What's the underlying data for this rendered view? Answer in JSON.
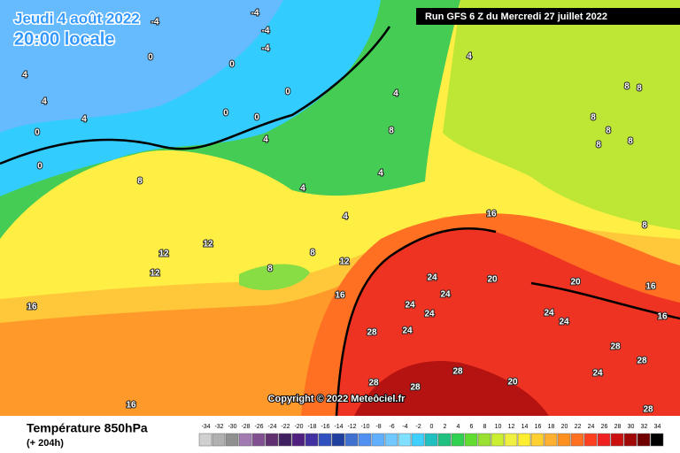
{
  "header": {
    "date": "Jeudi 4 août 2022",
    "time": "20:00 locale",
    "run": "Run GFS 6 Z du Mercredi 27 juillet 2022"
  },
  "copyright": "Copyright © 2022 Meteôciel.fr",
  "footer": {
    "title": "Température 850hPa",
    "lead": "(+ 204h)"
  },
  "contour_labels": [
    -4,
    -4,
    -4,
    -4,
    0,
    0,
    4,
    4,
    0,
    0,
    0,
    0,
    4,
    0,
    4,
    4,
    8,
    4,
    8,
    4,
    4,
    12,
    12,
    12,
    8,
    8,
    12,
    16,
    16,
    16,
    16,
    24,
    20,
    20,
    16,
    16,
    24,
    24,
    24,
    28,
    24,
    24,
    28,
    28,
    28,
    28,
    28,
    20,
    24,
    28,
    8,
    8,
    8,
    8,
    8,
    8,
    8,
    4,
    24
  ],
  "legend": {
    "values": [
      -34,
      -32,
      -30,
      -28,
      -26,
      -24,
      -22,
      -20,
      -18,
      -16,
      -14,
      -12,
      -10,
      -8,
      -6,
      -4,
      -2,
      0,
      2,
      4,
      6,
      8,
      10,
      12,
      14,
      16,
      18,
      20,
      22,
      24,
      26,
      28,
      30,
      32,
      34
    ],
    "colors": [
      "#d0d0d0",
      "#b0b0b0",
      "#909090",
      "#a07ab0",
      "#805090",
      "#603070",
      "#402060",
      "#502080",
      "#4030a0",
      "#3050c0",
      "#2040a0",
      "#4070d0",
      "#5090f0",
      "#60b0ff",
      "#70c8ff",
      "#80e0ff",
      "#40d0ff",
      "#20c0c0",
      "#20c080",
      "#30d050",
      "#60dd30",
      "#99e030",
      "#ccee30",
      "#f0f040",
      "#ffee30",
      "#ffd030",
      "#ffb030",
      "#ff9020",
      "#ff7020",
      "#ff4020",
      "#ee2020",
      "#cc1010",
      "#a00808",
      "#700000",
      "#000000"
    ]
  }
}
